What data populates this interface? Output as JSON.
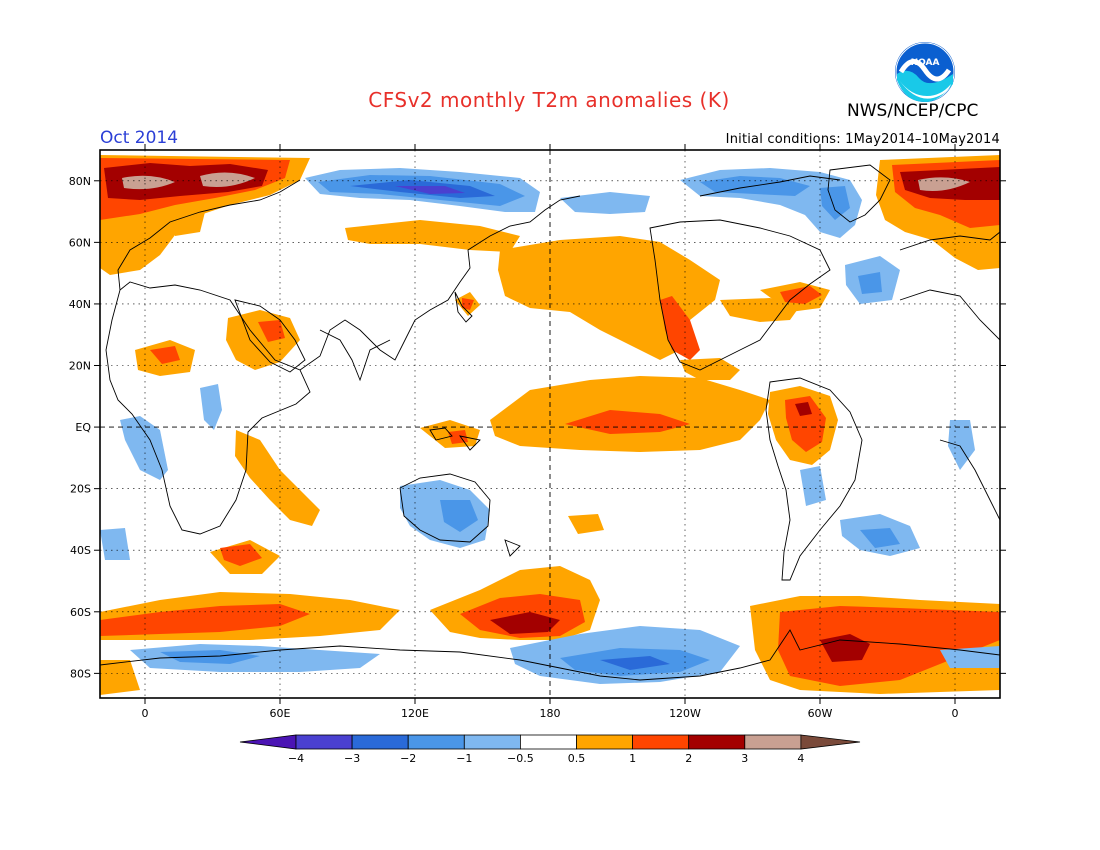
{
  "title": "CFSv2 monthly T2m anomalies (K)",
  "agency": "NWS/NCEP/CPC",
  "logo_text": "NOAA",
  "month": "Oct 2014",
  "initial_conditions": "Initial conditions: 1May2014–10May2014",
  "lat_labels": [
    "80N",
    "60N",
    "40N",
    "20N",
    "EQ",
    "20S",
    "40S",
    "60S",
    "80S"
  ],
  "lon_labels": [
    "0",
    "60E",
    "120E",
    "180",
    "120W",
    "60W",
    "0"
  ],
  "colorbar": {
    "tick_labels": [
      "−4",
      "−3",
      "−2",
      "−1",
      "−0.5",
      "0.5",
      "1",
      "2",
      "3",
      "4"
    ],
    "colors": [
      "#4b14b4",
      "#4a40d0",
      "#2a6ad8",
      "#4a96e8",
      "#7fb8f0",
      "#ffffff",
      "#ffa500",
      "#ff4500",
      "#a30000",
      "#c9a092",
      "#7a4a3a"
    ]
  },
  "colors": {
    "title": "#e8302a",
    "month": "#2b3fd6",
    "warm_1": "#ffa500",
    "warm_2": "#ff4500",
    "warm_3": "#a30000",
    "warm_4": "#c9a092",
    "cool_1": "#7fb8f0",
    "cool_2": "#4a96e8",
    "cool_3": "#2a6ad8",
    "cool_4": "#4a40d0"
  }
}
